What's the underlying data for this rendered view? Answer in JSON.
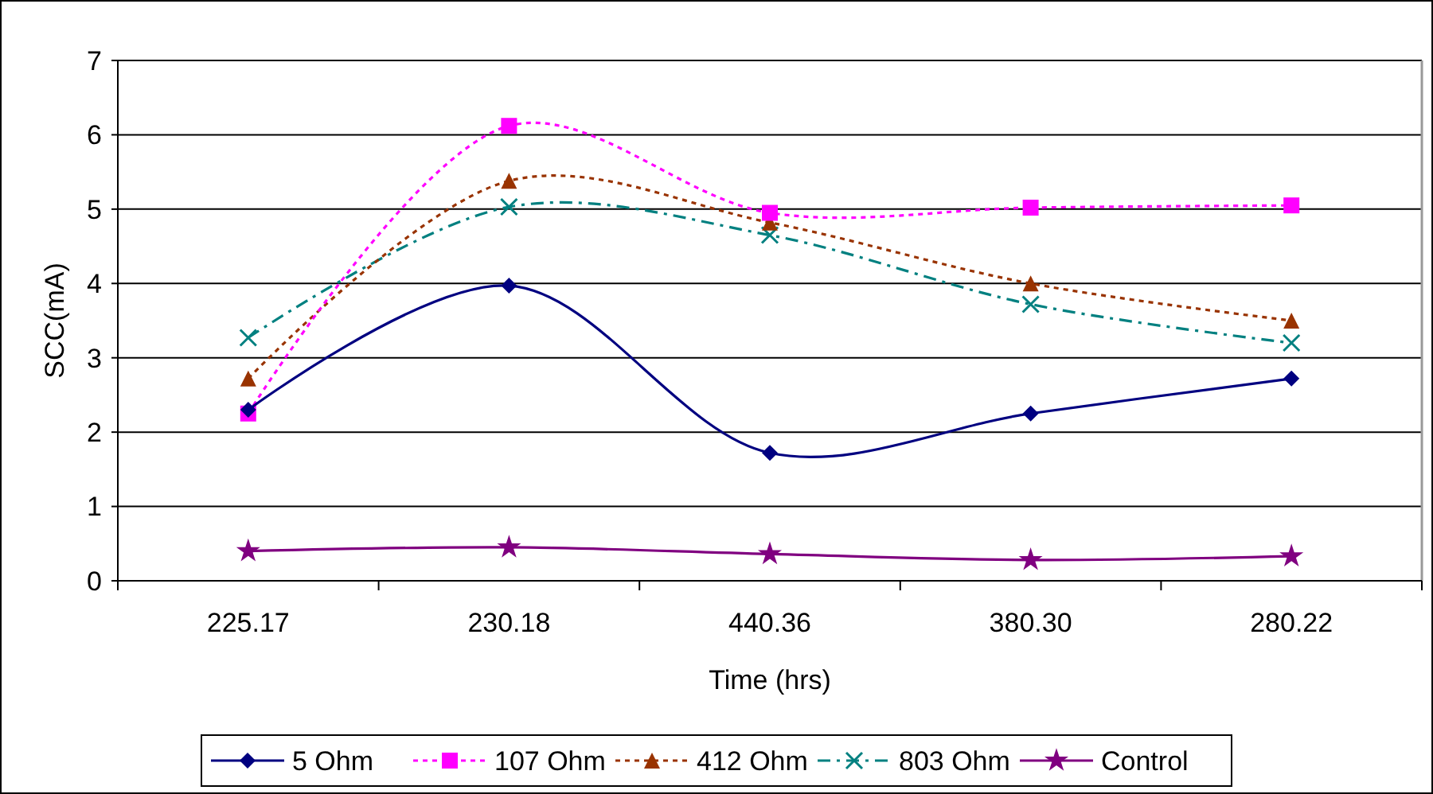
{
  "chart_data": {
    "type": "line",
    "xlabel": "Time (hrs)",
    "ylabel": "SCC(mA)",
    "categories": [
      "225.17",
      "230.18",
      "440.36",
      "380.30",
      "280.22"
    ],
    "series": [
      {
        "name": "5 Ohm",
        "color": "#000080",
        "marker": "diamond",
        "line_style": "solid",
        "values": [
          2.3,
          3.97,
          1.72,
          2.25,
          2.72
        ]
      },
      {
        "name": "107 Ohm",
        "color": "#ff00ff",
        "marker": "square",
        "line_style": "dotted",
        "values": [
          2.25,
          6.12,
          4.95,
          5.02,
          5.05
        ]
      },
      {
        "name": "412 Ohm",
        "color": "#993300",
        "marker": "triangle",
        "line_style": "dotted",
        "values": [
          2.72,
          5.38,
          4.82,
          4.0,
          3.5
        ]
      },
      {
        "name": "803 Ohm",
        "color": "#008080",
        "marker": "cross",
        "line_style": "dashed",
        "values": [
          3.27,
          5.03,
          4.65,
          3.72,
          3.2
        ]
      },
      {
        "name": "Control",
        "color": "#800080",
        "marker": "star",
        "line_style": "solid",
        "values": [
          0.4,
          0.45,
          0.36,
          0.28,
          0.33
        ]
      }
    ],
    "ylim": [
      0,
      7
    ],
    "yticks": [
      0,
      1,
      2,
      3,
      4,
      5,
      6,
      7
    ],
    "grid": "y",
    "legend": "bottom"
  }
}
